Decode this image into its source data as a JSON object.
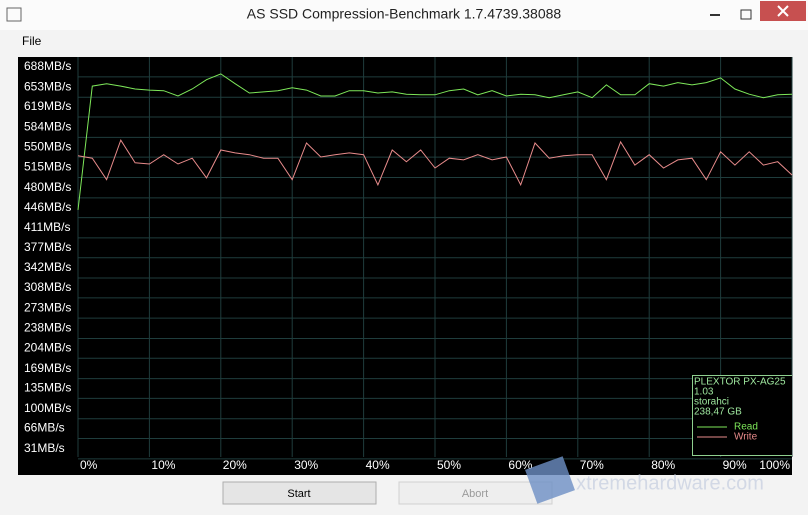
{
  "window": {
    "title": "AS SSD Compression-Benchmark 1.7.4739.38088",
    "menu": [
      "File"
    ],
    "buttons": [
      "Start",
      "Abort"
    ],
    "watermark": "xtremehardware.com"
  },
  "chart_data": {
    "type": "line",
    "x": [
      0,
      2,
      4,
      6,
      8,
      10,
      12,
      14,
      16,
      18,
      20,
      22,
      24,
      26,
      28,
      30,
      32,
      34,
      36,
      38,
      40,
      42,
      44,
      46,
      48,
      50,
      52,
      54,
      56,
      58,
      60,
      62,
      64,
      66,
      68,
      70,
      72,
      74,
      76,
      78,
      80,
      82,
      84,
      86,
      88,
      90,
      92,
      94,
      96,
      98,
      100
    ],
    "series": [
      {
        "name": "Read",
        "color": "#7ee85a",
        "values": [
          442,
          655,
          659,
          655,
          650,
          648,
          647,
          638,
          650,
          666,
          676,
          659,
          643,
          645,
          647,
          652,
          648,
          638,
          638,
          647,
          647,
          643,
          645,
          641,
          640,
          640,
          647,
          650,
          640,
          647,
          638,
          641,
          640,
          635,
          640,
          645,
          635,
          657,
          640,
          640,
          659,
          655,
          661,
          657,
          661,
          669,
          650,
          641,
          635,
          640,
          641
        ]
      },
      {
        "name": "Write",
        "color": "#e88b8b",
        "values": [
          535,
          531,
          494,
          562,
          523,
          521,
          537,
          521,
          531,
          497,
          545,
          540,
          537,
          531,
          531,
          494,
          557,
          533,
          537,
          540,
          537,
          485,
          545,
          525,
          545,
          514,
          531,
          528,
          537,
          528,
          533,
          485,
          557,
          531,
          535,
          537,
          537,
          494,
          559,
          519,
          537,
          514,
          528,
          531,
          494,
          542,
          519,
          542,
          519,
          525,
          502
        ]
      }
    ],
    "info": [
      "PLEXTOR PX-AG25",
      "1.03",
      "storahci",
      "238,47 GB"
    ],
    "xlim": [
      0,
      100
    ],
    "xticks": [
      {
        "value": 0,
        "label": "0%"
      },
      {
        "value": 10,
        "label": "10%"
      },
      {
        "value": 20,
        "label": "20%"
      },
      {
        "value": 30,
        "label": "30%"
      },
      {
        "value": 40,
        "label": "40%"
      },
      {
        "value": 50,
        "label": "50%"
      },
      {
        "value": 60,
        "label": "60%"
      },
      {
        "value": 70,
        "label": "70%"
      },
      {
        "value": 80,
        "label": "80%"
      },
      {
        "value": 90,
        "label": "90%"
      },
      {
        "value": 100,
        "label": "100%"
      }
    ],
    "ylim": [
      17,
      705
    ],
    "yticks": [
      {
        "value": 31,
        "label": "31MB/s"
      },
      {
        "value": 66,
        "label": "66MB/s"
      },
      {
        "value": 100,
        "label": "100MB/s"
      },
      {
        "value": 135,
        "label": "135MB/s"
      },
      {
        "value": 169,
        "label": "169MB/s"
      },
      {
        "value": 204,
        "label": "204MB/s"
      },
      {
        "value": 238,
        "label": "238MB/s"
      },
      {
        "value": 273,
        "label": "273MB/s"
      },
      {
        "value": 308,
        "label": "308MB/s"
      },
      {
        "value": 342,
        "label": "342MB/s"
      },
      {
        "value": 377,
        "label": "377MB/s"
      },
      {
        "value": 411,
        "label": "411MB/s"
      },
      {
        "value": 446,
        "label": "446MB/s"
      },
      {
        "value": 480,
        "label": "480MB/s"
      },
      {
        "value": 515,
        "label": "515MB/s"
      },
      {
        "value": 550,
        "label": "550MB/s"
      },
      {
        "value": 584,
        "label": "584MB/s"
      },
      {
        "value": 619,
        "label": "619MB/s"
      },
      {
        "value": 653,
        "label": "653MB/s"
      },
      {
        "value": 688,
        "label": "688MB/s"
      }
    ],
    "grid": true,
    "legend": "lower right"
  }
}
